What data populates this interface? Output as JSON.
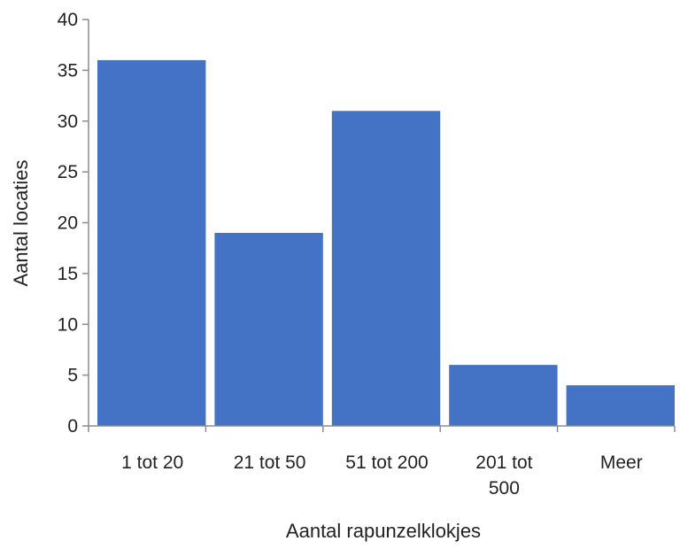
{
  "chart_data": {
    "type": "bar",
    "categories": [
      [
        "1 tot 20"
      ],
      [
        "21 tot 50"
      ],
      [
        "51 tot 200"
      ],
      [
        "201 tot",
        "500"
      ],
      [
        "Meer"
      ]
    ],
    "values": [
      36,
      19,
      31,
      6,
      4
    ],
    "title": "",
    "xlabel": "Aantal rapunzelklokjes",
    "ylabel": "Aantal locaties",
    "ylim": [
      0,
      40
    ],
    "yticks": [
      0,
      5,
      10,
      15,
      20,
      25,
      30,
      35,
      40
    ],
    "grid": false,
    "legend": "none",
    "colors": {
      "bar": "#4472C4",
      "axis": "#8C8C8C"
    }
  }
}
